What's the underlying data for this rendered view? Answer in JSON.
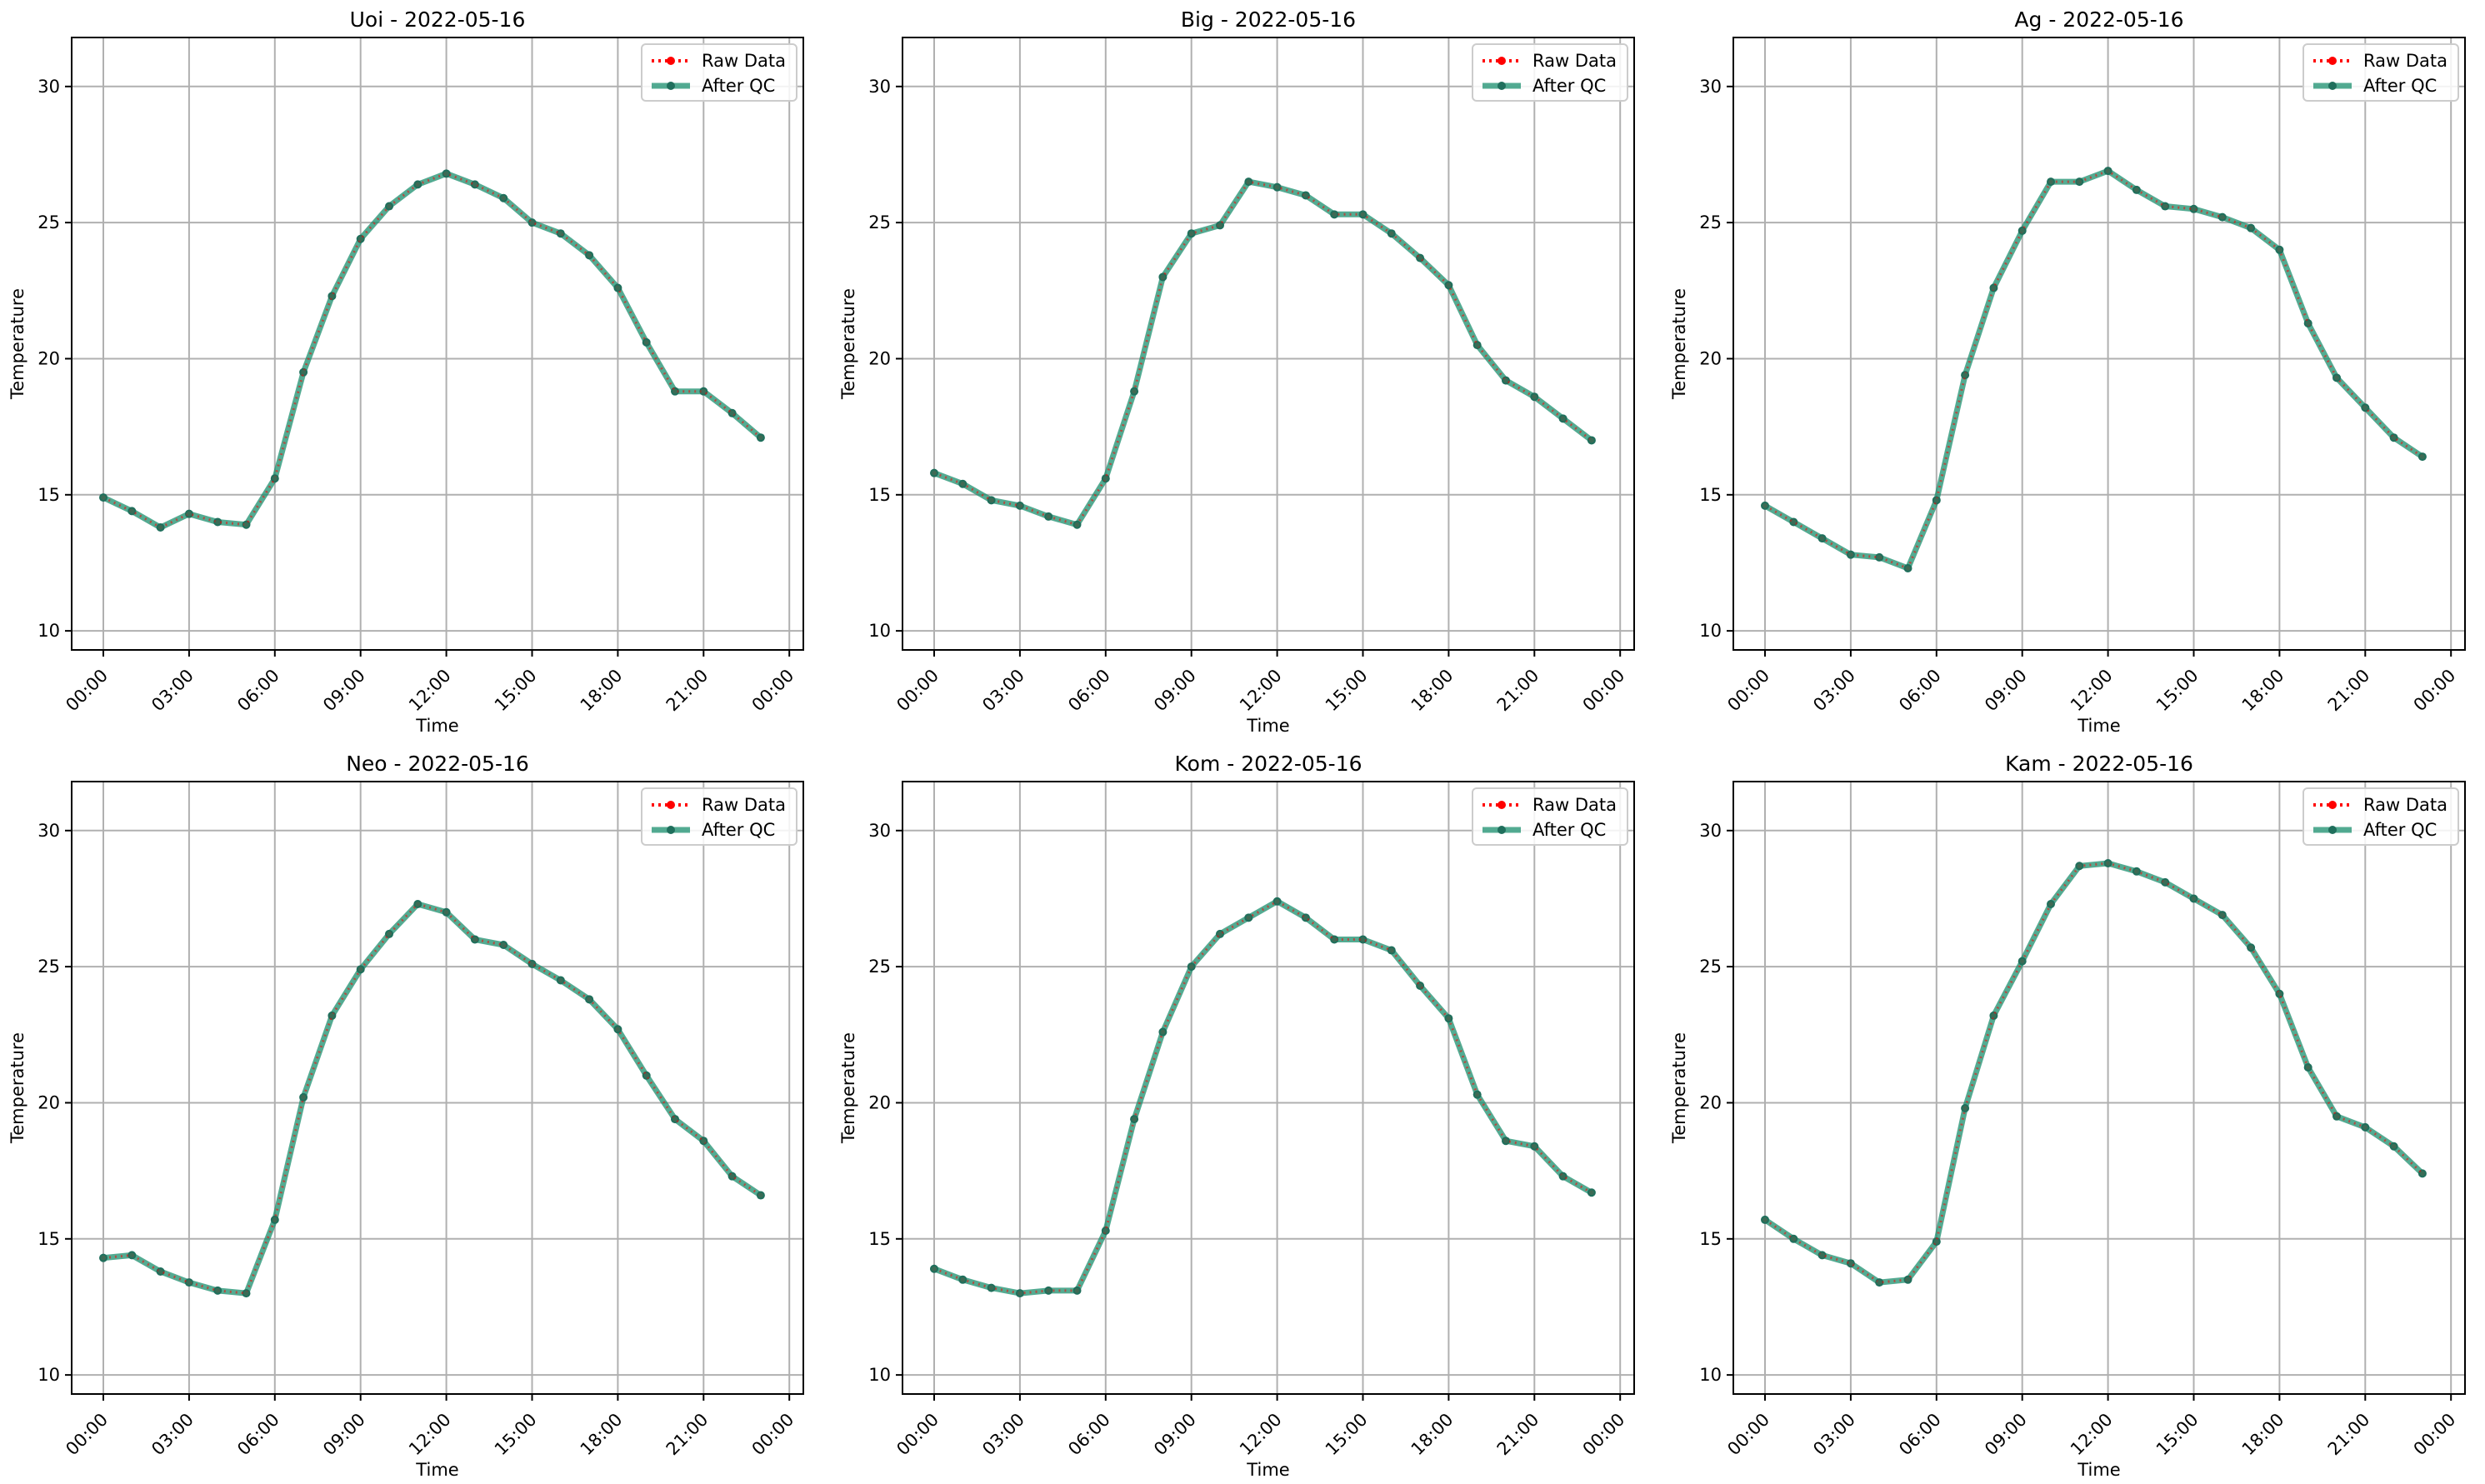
{
  "chart_data": [
    {
      "type": "line",
      "title": "Uoi - 2022-05-16",
      "xlabel": "Time",
      "ylabel": "Temperature",
      "x": [
        "00:00",
        "01:00",
        "02:00",
        "03:00",
        "04:00",
        "05:00",
        "06:00",
        "07:00",
        "08:00",
        "09:00",
        "10:00",
        "11:00",
        "12:00",
        "13:00",
        "14:00",
        "15:00",
        "16:00",
        "17:00",
        "18:00",
        "19:00",
        "20:00",
        "21:00",
        "22:00",
        "23:00"
      ],
      "xticks": [
        "00:00",
        "03:00",
        "06:00",
        "09:00",
        "12:00",
        "15:00",
        "18:00",
        "21:00",
        "00:00"
      ],
      "yticks": [
        10,
        15,
        20,
        25,
        30
      ],
      "ylim": [
        9.3,
        31.8
      ],
      "grid": true,
      "legend": "top-right",
      "series": [
        {
          "name": "Raw Data",
          "color": "#ff0000",
          "style": "dotted",
          "values": [
            14.9,
            14.4,
            13.8,
            14.3,
            14.0,
            13.9,
            15.6,
            19.5,
            22.3,
            24.4,
            25.6,
            26.4,
            26.8,
            26.4,
            25.9,
            25.0,
            24.6,
            23.8,
            22.6,
            20.6,
            18.8,
            18.8,
            18.0,
            17.1
          ]
        },
        {
          "name": "After QC",
          "color": "#1a8f6e",
          "style": "solid",
          "values": [
            14.9,
            14.4,
            13.8,
            14.3,
            14.0,
            13.9,
            15.6,
            19.5,
            22.3,
            24.4,
            25.6,
            26.4,
            26.8,
            26.4,
            25.9,
            25.0,
            24.6,
            23.8,
            22.6,
            20.6,
            18.8,
            18.8,
            18.0,
            17.1
          ]
        }
      ]
    },
    {
      "type": "line",
      "title": "Big - 2022-05-16",
      "xlabel": "Time",
      "ylabel": "Temperature",
      "x": [
        "00:00",
        "01:00",
        "02:00",
        "03:00",
        "04:00",
        "05:00",
        "06:00",
        "07:00",
        "08:00",
        "09:00",
        "10:00",
        "11:00",
        "12:00",
        "13:00",
        "14:00",
        "15:00",
        "16:00",
        "17:00",
        "18:00",
        "19:00",
        "20:00",
        "21:00",
        "22:00",
        "23:00"
      ],
      "xticks": [
        "00:00",
        "03:00",
        "06:00",
        "09:00",
        "12:00",
        "15:00",
        "18:00",
        "21:00",
        "00:00"
      ],
      "yticks": [
        10,
        15,
        20,
        25,
        30
      ],
      "ylim": [
        9.3,
        31.8
      ],
      "grid": true,
      "legend": "top-right",
      "series": [
        {
          "name": "Raw Data",
          "color": "#ff0000",
          "style": "dotted",
          "values": [
            15.8,
            15.4,
            14.8,
            14.6,
            14.2,
            13.9,
            15.6,
            18.8,
            23.0,
            24.6,
            24.9,
            26.5,
            26.3,
            26.0,
            25.3,
            25.3,
            24.6,
            23.7,
            22.7,
            20.5,
            19.2,
            18.6,
            17.8,
            17.0
          ]
        },
        {
          "name": "After QC",
          "color": "#1a8f6e",
          "style": "solid",
          "values": [
            15.8,
            15.4,
            14.8,
            14.6,
            14.2,
            13.9,
            15.6,
            18.8,
            23.0,
            24.6,
            24.9,
            26.5,
            26.3,
            26.0,
            25.3,
            25.3,
            24.6,
            23.7,
            22.7,
            20.5,
            19.2,
            18.6,
            17.8,
            17.0
          ]
        }
      ]
    },
    {
      "type": "line",
      "title": "Ag - 2022-05-16",
      "xlabel": "Time",
      "ylabel": "Temperature",
      "x": [
        "00:00",
        "01:00",
        "02:00",
        "03:00",
        "04:00",
        "05:00",
        "06:00",
        "07:00",
        "08:00",
        "09:00",
        "10:00",
        "11:00",
        "12:00",
        "13:00",
        "14:00",
        "15:00",
        "16:00",
        "17:00",
        "18:00",
        "19:00",
        "20:00",
        "21:00",
        "22:00",
        "23:00"
      ],
      "xticks": [
        "00:00",
        "03:00",
        "06:00",
        "09:00",
        "12:00",
        "15:00",
        "18:00",
        "21:00",
        "00:00"
      ],
      "yticks": [
        10,
        15,
        20,
        25,
        30
      ],
      "ylim": [
        9.3,
        31.8
      ],
      "grid": true,
      "legend": "top-right",
      "series": [
        {
          "name": "Raw Data",
          "color": "#ff0000",
          "style": "dotted",
          "values": [
            14.6,
            14.0,
            13.4,
            12.8,
            12.7,
            12.3,
            14.8,
            19.4,
            22.6,
            24.7,
            26.5,
            26.5,
            26.9,
            26.2,
            25.6,
            25.5,
            25.2,
            24.8,
            24.0,
            21.3,
            19.3,
            18.2,
            17.1,
            16.4
          ]
        },
        {
          "name": "After QC",
          "color": "#1a8f6e",
          "style": "solid",
          "values": [
            14.6,
            14.0,
            13.4,
            12.8,
            12.7,
            12.3,
            14.8,
            19.4,
            22.6,
            24.7,
            26.5,
            26.5,
            26.9,
            26.2,
            25.6,
            25.5,
            25.2,
            24.8,
            24.0,
            21.3,
            19.3,
            18.2,
            17.1,
            16.4
          ]
        }
      ]
    },
    {
      "type": "line",
      "title": "Neo - 2022-05-16",
      "xlabel": "Time",
      "ylabel": "Temperature",
      "x": [
        "00:00",
        "01:00",
        "02:00",
        "03:00",
        "04:00",
        "05:00",
        "06:00",
        "07:00",
        "08:00",
        "09:00",
        "10:00",
        "11:00",
        "12:00",
        "13:00",
        "14:00",
        "15:00",
        "16:00",
        "17:00",
        "18:00",
        "19:00",
        "20:00",
        "21:00",
        "22:00",
        "23:00"
      ],
      "xticks": [
        "00:00",
        "03:00",
        "06:00",
        "09:00",
        "12:00",
        "15:00",
        "18:00",
        "21:00",
        "00:00"
      ],
      "yticks": [
        10,
        15,
        20,
        25,
        30
      ],
      "ylim": [
        9.3,
        31.8
      ],
      "grid": true,
      "legend": "top-right",
      "series": [
        {
          "name": "Raw Data",
          "color": "#ff0000",
          "style": "dotted",
          "values": [
            14.3,
            14.4,
            13.8,
            13.4,
            13.1,
            13.0,
            15.7,
            20.2,
            23.2,
            24.9,
            26.2,
            27.3,
            27.0,
            26.0,
            25.8,
            25.1,
            24.5,
            23.8,
            22.7,
            21.0,
            19.4,
            18.6,
            17.3,
            16.6
          ]
        },
        {
          "name": "After QC",
          "color": "#1a8f6e",
          "style": "solid",
          "values": [
            14.3,
            14.4,
            13.8,
            13.4,
            13.1,
            13.0,
            15.7,
            20.2,
            23.2,
            24.9,
            26.2,
            27.3,
            27.0,
            26.0,
            25.8,
            25.1,
            24.5,
            23.8,
            22.7,
            21.0,
            19.4,
            18.6,
            17.3,
            16.6
          ]
        }
      ]
    },
    {
      "type": "line",
      "title": "Kom - 2022-05-16",
      "xlabel": "Time",
      "ylabel": "Temperature",
      "x": [
        "00:00",
        "01:00",
        "02:00",
        "03:00",
        "04:00",
        "05:00",
        "06:00",
        "07:00",
        "08:00",
        "09:00",
        "10:00",
        "11:00",
        "12:00",
        "13:00",
        "14:00",
        "15:00",
        "16:00",
        "17:00",
        "18:00",
        "19:00",
        "20:00",
        "21:00",
        "22:00",
        "23:00"
      ],
      "xticks": [
        "00:00",
        "03:00",
        "06:00",
        "09:00",
        "12:00",
        "15:00",
        "18:00",
        "21:00",
        "00:00"
      ],
      "yticks": [
        10,
        15,
        20,
        25,
        30
      ],
      "ylim": [
        9.3,
        31.8
      ],
      "grid": true,
      "legend": "top-right",
      "series": [
        {
          "name": "Raw Data",
          "color": "#ff0000",
          "style": "dotted",
          "values": [
            13.9,
            13.5,
            13.2,
            13.0,
            13.1,
            13.1,
            15.3,
            19.4,
            22.6,
            25.0,
            26.2,
            26.8,
            27.4,
            26.8,
            26.0,
            26.0,
            25.6,
            24.3,
            23.1,
            20.3,
            18.6,
            18.4,
            17.3,
            16.7
          ]
        },
        {
          "name": "After QC",
          "color": "#1a8f6e",
          "style": "solid",
          "values": [
            13.9,
            13.5,
            13.2,
            13.0,
            13.1,
            13.1,
            15.3,
            19.4,
            22.6,
            25.0,
            26.2,
            26.8,
            27.4,
            26.8,
            26.0,
            26.0,
            25.6,
            24.3,
            23.1,
            20.3,
            18.6,
            18.4,
            17.3,
            16.7
          ]
        }
      ]
    },
    {
      "type": "line",
      "title": "Kam - 2022-05-16",
      "xlabel": "Time",
      "ylabel": "Temperature",
      "x": [
        "00:00",
        "01:00",
        "02:00",
        "03:00",
        "04:00",
        "05:00",
        "06:00",
        "07:00",
        "08:00",
        "09:00",
        "10:00",
        "11:00",
        "12:00",
        "13:00",
        "14:00",
        "15:00",
        "16:00",
        "17:00",
        "18:00",
        "19:00",
        "20:00",
        "21:00",
        "22:00",
        "23:00"
      ],
      "xticks": [
        "00:00",
        "03:00",
        "06:00",
        "09:00",
        "12:00",
        "15:00",
        "18:00",
        "21:00",
        "00:00"
      ],
      "yticks": [
        10,
        15,
        20,
        25,
        30
      ],
      "ylim": [
        9.3,
        31.8
      ],
      "grid": true,
      "legend": "top-right",
      "series": [
        {
          "name": "Raw Data",
          "color": "#ff0000",
          "style": "dotted",
          "values": [
            15.7,
            15.0,
            14.4,
            14.1,
            13.4,
            13.5,
            14.9,
            19.8,
            23.2,
            25.2,
            27.3,
            28.7,
            28.8,
            28.5,
            28.1,
            27.5,
            26.9,
            25.7,
            24.0,
            21.3,
            19.5,
            19.1,
            18.4,
            17.4
          ]
        },
        {
          "name": "After QC",
          "color": "#1a8f6e",
          "style": "solid",
          "values": [
            15.7,
            15.0,
            14.4,
            14.1,
            13.4,
            13.5,
            14.9,
            19.8,
            23.2,
            25.2,
            27.3,
            28.7,
            28.8,
            28.5,
            28.1,
            27.5,
            26.9,
            25.7,
            24.0,
            21.3,
            19.5,
            19.1,
            18.4,
            17.4
          ]
        }
      ]
    }
  ]
}
